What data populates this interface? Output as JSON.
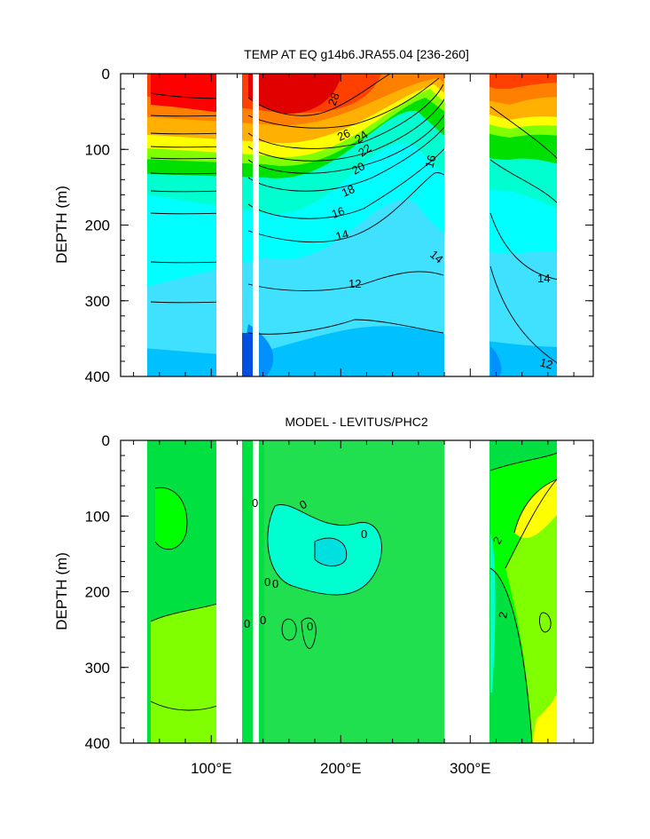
{
  "chart_data": [
    {
      "type": "heatmap",
      "subtype": "filled-contour",
      "title": "TEMP AT EQ g14b6.JRA55.04 [236-260]",
      "xlabel": "",
      "ylabel": "DEPTH (m)",
      "xlim": [
        30,
        395
      ],
      "ylim": [
        400,
        0
      ],
      "y_ticks": [
        0,
        100,
        200,
        300,
        400
      ],
      "y_tick_labels": [
        "0",
        "100",
        "200",
        "300",
        "400"
      ],
      "x_ticks": [
        100,
        200,
        300
      ],
      "x_tick_labels": [
        "100°E",
        "200°E",
        "300°E"
      ],
      "land_gaps": [
        [
          97,
          118
        ],
        [
          128,
          131
        ],
        [
          279,
          313
        ],
        [
          369,
          395
        ]
      ],
      "contour_labels": [
        "28",
        "26",
        "24",
        "22",
        "20",
        "18",
        "16",
        "16",
        "14",
        "14",
        "14",
        "12",
        "12"
      ],
      "colors": {
        "28": "#e00000",
        "26": "#ff4000",
        "24": "#ff8000",
        "22": "#ffb000",
        "20": "#ffff00",
        "18": "#80ff00",
        "16": "#00e000",
        "14": "#00ffd0",
        "13": "#00ffff",
        "12": "#40e0ff",
        "11": "#00c0ff",
        "10": "#0090ff",
        "9": "#0050e0"
      }
    },
    {
      "type": "heatmap",
      "subtype": "filled-contour",
      "title": "MODEL - LEVITUS/PHC2",
      "xlabel": "",
      "ylabel": "DEPTH (m)",
      "xlim": [
        30,
        395
      ],
      "ylim": [
        400,
        0
      ],
      "y_ticks": [
        0,
        100,
        200,
        300,
        400
      ],
      "y_tick_labels": [
        "0",
        "100",
        "200",
        "300",
        "400"
      ],
      "x_ticks": [
        100,
        200,
        300
      ],
      "x_tick_labels": [
        "100°E",
        "200°E",
        "300°E"
      ],
      "land_gaps": [
        [
          97,
          118
        ],
        [
          128,
          131
        ],
        [
          279,
          313
        ],
        [
          369,
          395
        ]
      ],
      "contour_labels": [
        "0",
        "0",
        "0",
        "0",
        "0",
        "0",
        "0",
        "0",
        "2",
        "2"
      ],
      "colors": {
        "-2": "#00ffd0",
        "0": "#00e040",
        "0_alt": "#00ff00",
        "2": "#80ff00",
        "4": "#ffff00"
      }
    }
  ]
}
